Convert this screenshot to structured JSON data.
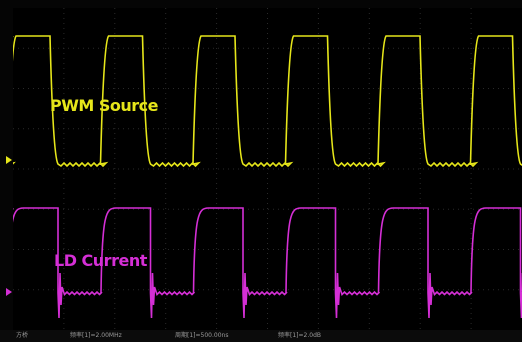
{
  "traces": [
    {
      "name": "PWM Source",
      "color": "#e6e61a"
    },
    {
      "name": "LD Current",
      "color": "#d52fd6"
    }
  ],
  "colors": {
    "grid": "#2a2a2a",
    "channel1": "#e6e61a",
    "channel2": "#d52fd6"
  },
  "status_bar": {
    "items": [
      "方桥",
      "频率[1]=2.00MHz",
      "周期[1]=500.00ns",
      "频率[1]=2.0dB"
    ]
  }
}
